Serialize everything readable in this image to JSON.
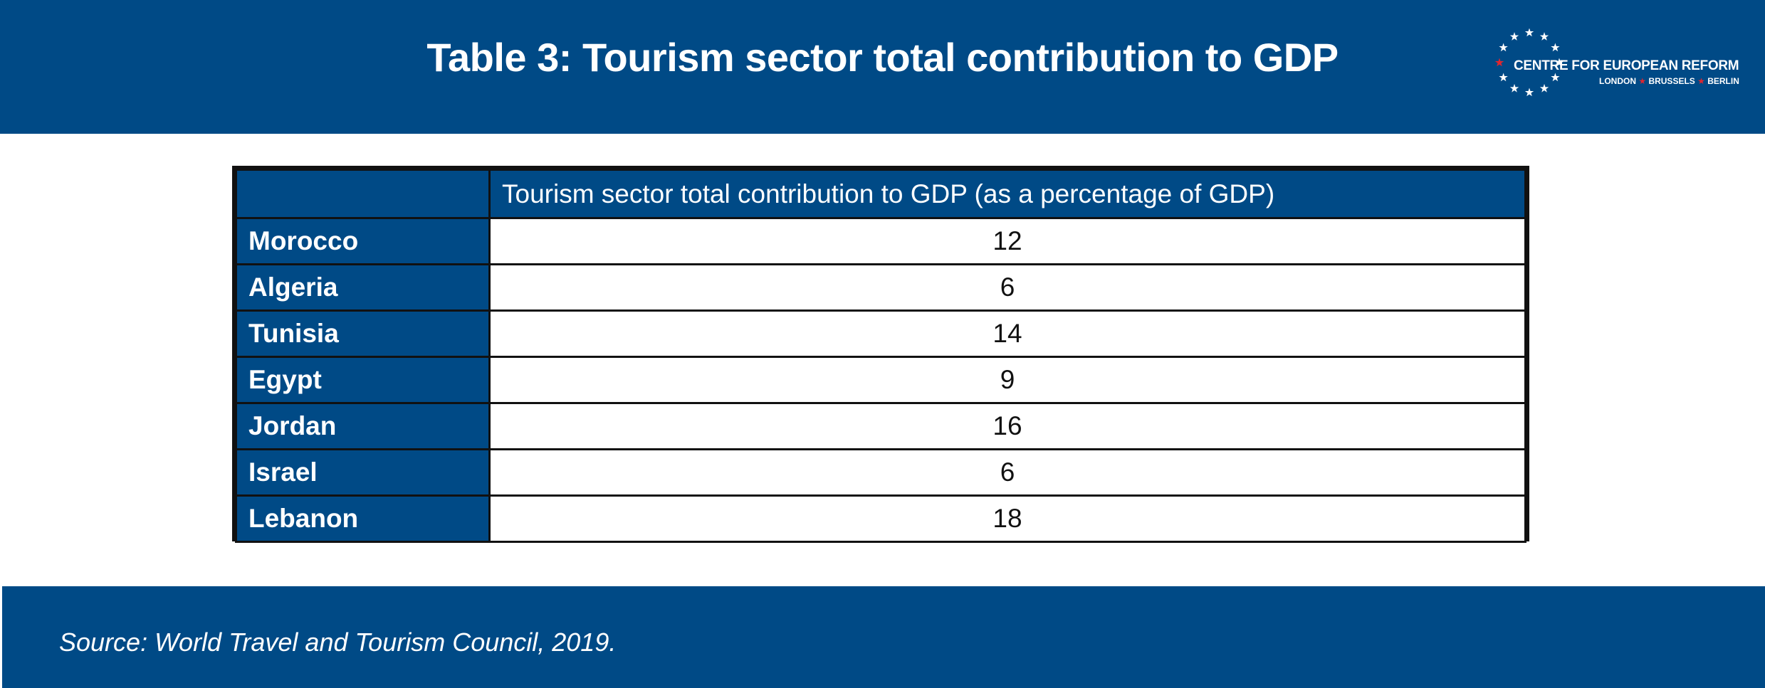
{
  "title": "Table 3: Tourism sector total contribution to GDP",
  "logo": {
    "name": "CENTRE FOR EUROPEAN REFORM",
    "cities": [
      "LONDON",
      "BRUSSELS",
      "BERLIN"
    ],
    "colors": {
      "stars": "#ffffff",
      "accent_star": "#e0262f"
    }
  },
  "chart_data": {
    "type": "table",
    "column_header": "Tourism sector total contribution to GDP (as a percentage of GDP)",
    "rows": [
      {
        "label": "Morocco",
        "value": 12
      },
      {
        "label": "Algeria",
        "value": 6
      },
      {
        "label": "Tunisia",
        "value": 14
      },
      {
        "label": "Egypt",
        "value": 9
      },
      {
        "label": "Jordan",
        "value": 16
      },
      {
        "label": "Israel",
        "value": 6
      },
      {
        "label": "Lebanon",
        "value": 18
      }
    ]
  },
  "source": "Source: World Travel and Tourism Council, 2019.",
  "colors": {
    "brand_blue": "#004a86",
    "text_dark": "#111111",
    "white": "#ffffff"
  }
}
